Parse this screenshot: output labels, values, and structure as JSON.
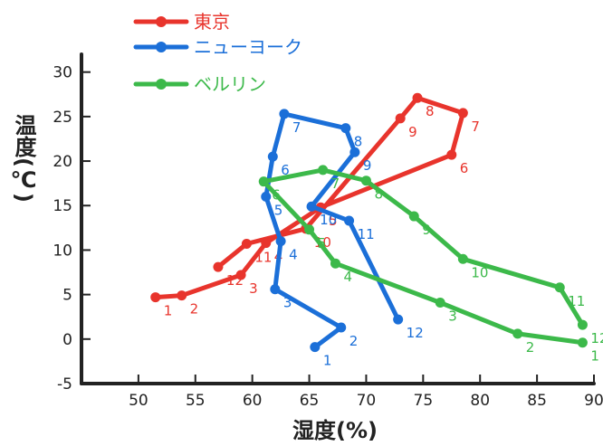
{
  "chart_data": {
    "type": "line",
    "xlabel": "湿度(%)",
    "ylabel": "温度(℃)",
    "xlim": [
      45,
      90
    ],
    "ylim": [
      -5,
      32
    ],
    "xticks": [
      "50",
      "55",
      "60",
      "65",
      "70",
      "75",
      "80",
      "85",
      "90"
    ],
    "yticks": [
      "-5",
      "0",
      "5",
      "10",
      "15",
      "20",
      "25",
      "30"
    ],
    "series": [
      {
        "name": "東京",
        "color": "#e8342c",
        "labels": [
          "1",
          "2",
          "3",
          "4",
          "5",
          "6",
          "7",
          "8",
          "9",
          "10",
          "11",
          "12"
        ],
        "humidity": [
          51.5,
          53.8,
          59.0,
          61.2,
          66.0,
          77.5,
          78.5,
          74.5,
          73.0,
          64.7,
          59.5,
          57.0
        ],
        "temperature": [
          4.7,
          4.9,
          7.2,
          10.8,
          14.8,
          20.7,
          25.4,
          27.1,
          24.8,
          12.4,
          10.7,
          8.1
        ]
      },
      {
        "name": "ニューヨーク",
        "color": "#1b6fd8",
        "labels": [
          "1",
          "2",
          "3",
          "4",
          "5",
          "6",
          "7",
          "8",
          "9",
          "10",
          "11",
          "12"
        ],
        "humidity": [
          65.5,
          67.8,
          62.0,
          62.5,
          61.2,
          61.8,
          62.8,
          68.2,
          69.0,
          65.2,
          68.5,
          72.8
        ],
        "temperature": [
          -0.9,
          1.3,
          5.6,
          11.0,
          16.0,
          20.5,
          25.3,
          23.7,
          21.0,
          14.9,
          13.3,
          2.2
        ]
      },
      {
        "name": "ベルリン",
        "color": "#3cb94a",
        "labels": [
          "1",
          "2",
          "3",
          "4",
          "5",
          "6",
          "7",
          "8",
          "9",
          "10",
          "11",
          "12"
        ],
        "humidity": [
          89.0,
          83.3,
          76.5,
          67.3,
          65.0,
          61.0,
          66.2,
          70.0,
          74.2,
          78.5,
          87.0,
          89.0
        ],
        "temperature": [
          -0.4,
          0.6,
          4.1,
          8.5,
          12.3,
          17.7,
          19.0,
          17.8,
          13.8,
          9.0,
          5.8,
          1.6
        ]
      }
    ]
  }
}
